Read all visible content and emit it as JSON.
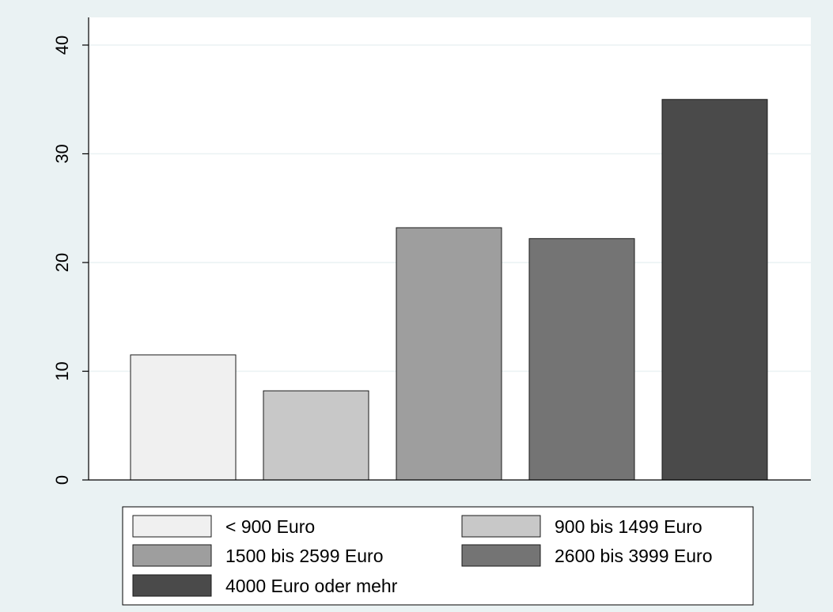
{
  "chart_data": {
    "type": "bar",
    "categories": [
      "< 900 Euro",
      "900 bis 1499 Euro",
      "1500 bis 2599 Euro",
      "2600 bis 3999 Euro",
      "4000 Euro oder mehr"
    ],
    "values": [
      11.5,
      8.2,
      23.2,
      22.2,
      35.0
    ],
    "colors": [
      "#f0f0f0",
      "#c8c8c8",
      "#9e9e9e",
      "#747474",
      "#4a4a4a"
    ],
    "y_ticks": [
      0,
      10,
      20,
      30,
      40
    ],
    "ylim": [
      0,
      40
    ],
    "grid": true,
    "legend_position": "bottom",
    "background_color": "#eaf2f3",
    "plot_background_color": "#ffffff",
    "gridline_color": "#eaf2f3",
    "title": "",
    "xlabel": "",
    "ylabel": ""
  }
}
